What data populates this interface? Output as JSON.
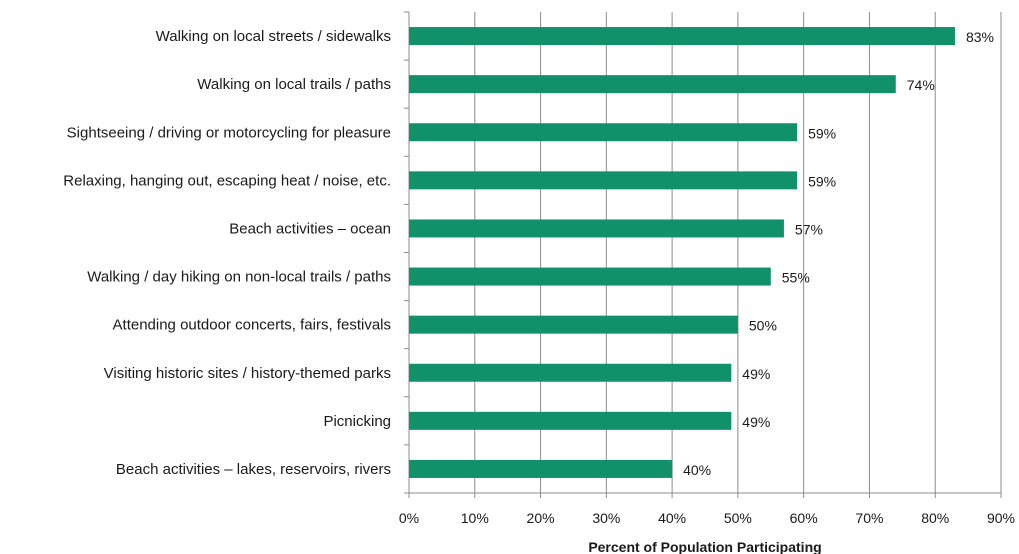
{
  "chart_data": {
    "type": "bar",
    "orientation": "horizontal",
    "categories": [
      "Walking on local streets / sidewalks",
      "Walking on local trails / paths",
      "Sightseeing / driving or motorcycling for pleasure",
      "Relaxing, hanging out, escaping heat / noise, etc.",
      "Beach activities – ocean",
      "Walking / day hiking on non-local trails / paths",
      "Attending outdoor concerts, fairs, festivals",
      "Visiting historic sites / history-themed parks",
      "Picnicking",
      "Beach activities – lakes, reservoirs, rivers"
    ],
    "values": [
      83,
      74,
      59,
      59,
      57,
      55,
      50,
      49,
      49,
      40
    ],
    "value_labels": [
      "83%",
      "74%",
      "59%",
      "59%",
      "57%",
      "55%",
      "50%",
      "49%",
      "49%",
      "40%"
    ],
    "xlim": [
      0,
      90
    ],
    "xticks": [
      "0%",
      "10%",
      "20%",
      "30%",
      "40%",
      "50%",
      "60%",
      "70%",
      "80%",
      "90%"
    ],
    "xlabel": "Percent of Population Participating",
    "grid": true,
    "bar_color": "#119169"
  }
}
